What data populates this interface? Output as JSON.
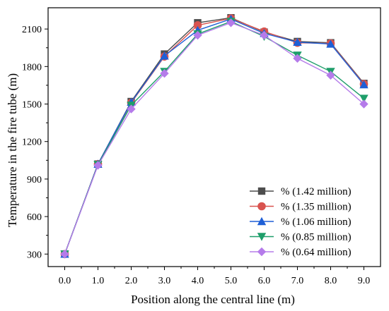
{
  "chart_data": {
    "type": "line",
    "title": "",
    "xlabel": "Position along the central line (m)",
    "ylabel": "Temperature in the fire tube (m)",
    "x": [
      0,
      1,
      2,
      3,
      4,
      5,
      6,
      7,
      8,
      9
    ],
    "x_tick_labels": [
      "0.0",
      "1.0",
      "2.0",
      "3.0",
      "4.0",
      "5.0",
      "6.0",
      "7.0",
      "8.0",
      "9.0"
    ],
    "xlim": [
      -0.5,
      9.5
    ],
    "y_ticks": [
      300,
      600,
      900,
      1200,
      1500,
      1800,
      2100
    ],
    "y_tick_labels": [
      "300",
      "600",
      "900",
      "1200",
      "1500",
      "1800",
      "2100"
    ],
    "ylim": [
      200,
      2270
    ],
    "grid": false,
    "legend_position": "bottom-right",
    "series": [
      {
        "name": "% (1.42 million)",
        "color": "#4d4d4d",
        "marker": "square",
        "values": [
          300,
          1020,
          1520,
          1900,
          2150,
          2190,
          2075,
          2000,
          1990,
          1665
        ]
      },
      {
        "name": "% (1.35 million)",
        "color": "#d9534f",
        "marker": "circle",
        "values": [
          300,
          1020,
          1510,
          1880,
          2130,
          2185,
          2080,
          1990,
          1985,
          1660
        ]
      },
      {
        "name": "% (1.06 million)",
        "color": "#1f5fd6",
        "marker": "triangle-up",
        "values": [
          300,
          1020,
          1515,
          1885,
          2090,
          2180,
          2065,
          1995,
          1980,
          1655
        ]
      },
      {
        "name": "% (0.85 million)",
        "color": "#1e9e6a",
        "marker": "triangle-down",
        "values": [
          300,
          1015,
          1490,
          1760,
          2060,
          2160,
          2040,
          1890,
          1760,
          1545
        ]
      },
      {
        "name": "% (0.64 million)",
        "color": "#b57bea",
        "marker": "diamond",
        "values": [
          300,
          1010,
          1460,
          1745,
          2050,
          2150,
          2050,
          1865,
          1730,
          1500
        ]
      }
    ]
  }
}
